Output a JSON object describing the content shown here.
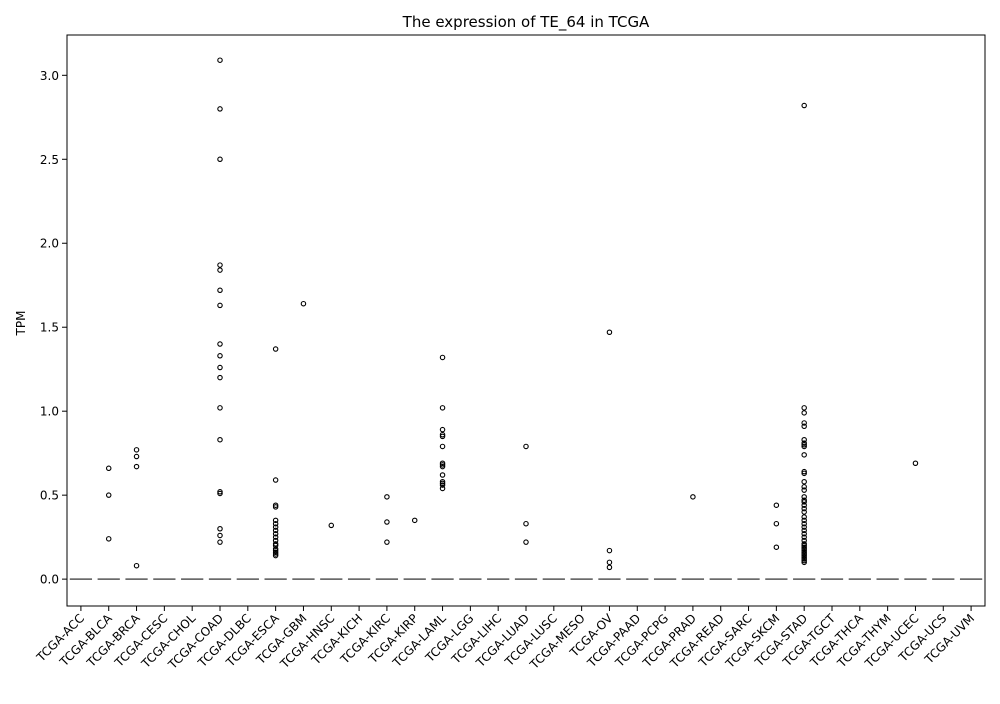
{
  "chart_data": {
    "type": "box",
    "title": "The expression of TE_64 in TCGA",
    "xlabel": "",
    "ylabel": "TPM",
    "ylim": [
      -0.16,
      3.24
    ],
    "yticks": [
      "0.0",
      "0.5",
      "1.0",
      "1.5",
      "2.0",
      "2.5",
      "3.0"
    ],
    "ytick_values": [
      0,
      0.5,
      1.0,
      1.5,
      2.0,
      2.5,
      3.0
    ],
    "grid": false,
    "categories": [
      "TCGA-ACC",
      "TCGA-BLCA",
      "TCGA-BRCA",
      "TCGA-CESC",
      "TCGA-CHOL",
      "TCGA-COAD",
      "TCGA-DLBC",
      "TCGA-ESCA",
      "TCGA-GBM",
      "TCGA-HNSC",
      "TCGA-KICH",
      "TCGA-KIRC",
      "TCGA-KIRP",
      "TCGA-LAML",
      "TCGA-LGG",
      "TCGA-LIHC",
      "TCGA-LUAD",
      "TCGA-LUSC",
      "TCGA-MESO",
      "TCGA-OV",
      "TCGA-PAAD",
      "TCGA-PCPG",
      "TCGA-PRAD",
      "TCGA-READ",
      "TCGA-SARC",
      "TCGA-SKCM",
      "TCGA-STAD",
      "TCGA-TGCT",
      "TCGA-THCA",
      "TCGA-THYM",
      "TCGA-UCEC",
      "TCGA-UCS",
      "TCGA-UVM"
    ],
    "median": 0,
    "outliers": [
      [],
      [
        0.66,
        0.5,
        0.24
      ],
      [
        0.77,
        0.73,
        0.67,
        0.08
      ],
      [],
      [],
      [
        3.09,
        2.8,
        2.5,
        1.87,
        1.84,
        1.72,
        1.63,
        1.4,
        1.33,
        1.26,
        1.2,
        1.02,
        0.83,
        0.52,
        0.51,
        0.3,
        0.26,
        0.22
      ],
      [],
      [
        1.37,
        0.59,
        0.44,
        0.43,
        0.35,
        0.33,
        0.31,
        0.29,
        0.27,
        0.25,
        0.23,
        0.21,
        0.2,
        0.18,
        0.17,
        0.16,
        0.15,
        0.14
      ],
      [
        1.64
      ],
      [
        0.32
      ],
      [],
      [
        0.49,
        0.34,
        0.22
      ],
      [
        0.35
      ],
      [
        1.32,
        1.02,
        0.89,
        0.86,
        0.85,
        0.79,
        0.69,
        0.68,
        0.67,
        0.62,
        0.58,
        0.57,
        0.56,
        0.54
      ],
      [],
      [],
      [
        0.79,
        0.33,
        0.22
      ],
      [],
      [],
      [
        1.47,
        0.17,
        0.1,
        0.07
      ],
      [],
      [],
      [
        0.49
      ],
      [],
      [],
      [
        0.44,
        0.33,
        0.19
      ],
      [
        2.82,
        1.02,
        0.99,
        0.93,
        0.91,
        0.83,
        0.81,
        0.8,
        0.79,
        0.74,
        0.64,
        0.63,
        0.58,
        0.55,
        0.53,
        0.49,
        0.47,
        0.46,
        0.44,
        0.42,
        0.4,
        0.37,
        0.35,
        0.33,
        0.31,
        0.29,
        0.27,
        0.25,
        0.23,
        0.21,
        0.2,
        0.19,
        0.18,
        0.17,
        0.16,
        0.15,
        0.14,
        0.13,
        0.12,
        0.11,
        0.1
      ],
      [],
      [],
      [],
      [
        0.69
      ],
      [],
      []
    ]
  }
}
